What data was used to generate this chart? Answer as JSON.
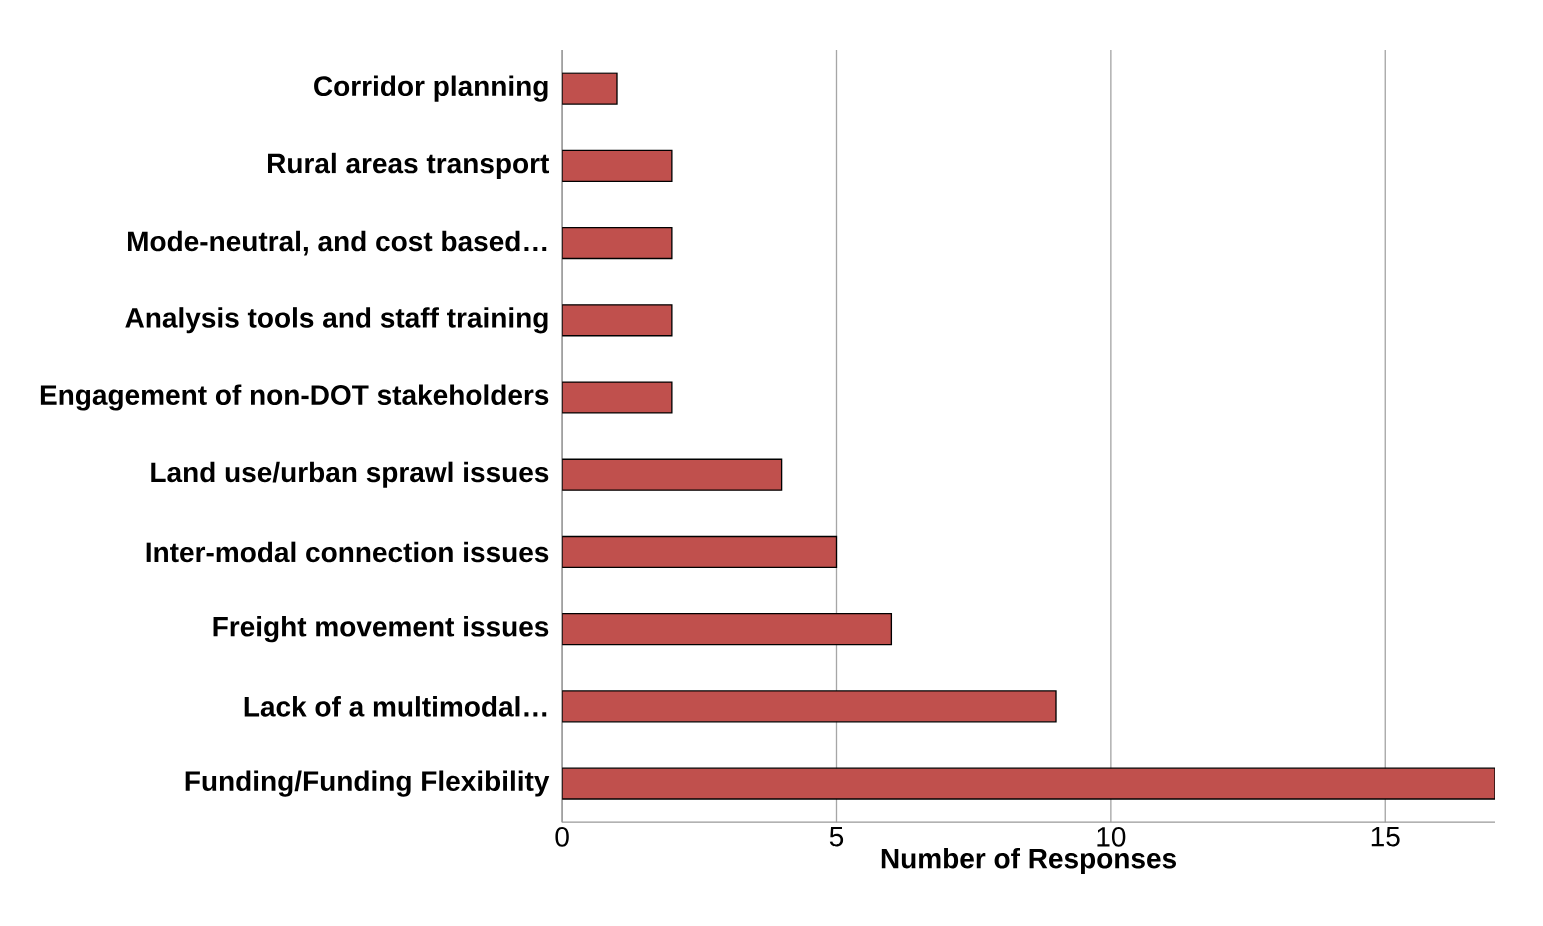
{
  "chart_data": {
    "type": "bar",
    "orientation": "horizontal",
    "xlabel": "Number of Responses",
    "categories": [
      "Corridor  planning",
      "Rural areas transport",
      "Mode-neutral, and cost based…",
      "Analysis tools and staff training",
      "Engagement of non-DOT stakeholders",
      "Land use/urban sprawl issues",
      "Inter-modal connection issues",
      "Freight movement issues",
      "Lack of a multimodal…",
      "Funding/Funding Flexibility"
    ],
    "values": [
      1,
      2,
      2,
      2,
      2,
      4,
      5,
      6,
      9,
      17
    ],
    "color": "#c0504d",
    "xlim": [
      0,
      17
    ],
    "xticks": [
      0,
      5,
      10,
      15
    ],
    "grid": "x"
  }
}
